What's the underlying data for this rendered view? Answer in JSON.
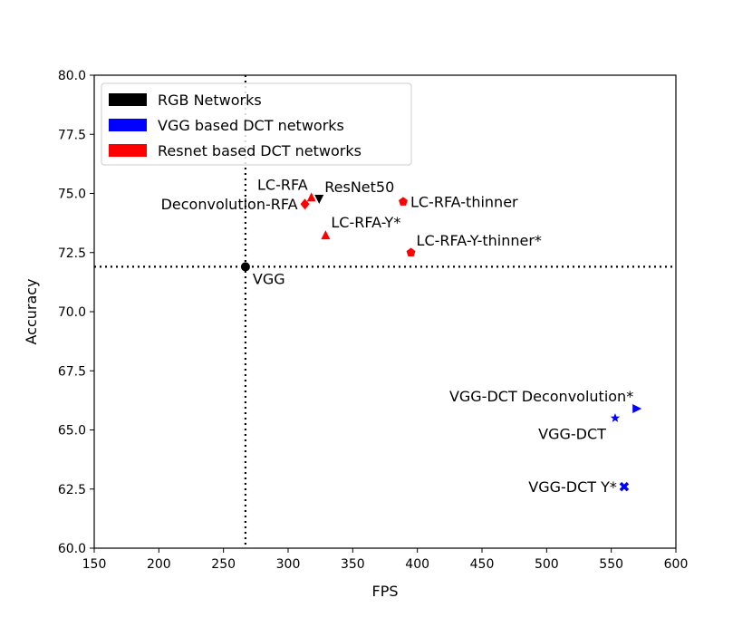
{
  "chart_data": {
    "type": "scatter",
    "title": "",
    "xlabel": "FPS",
    "ylabel": "Accuracy",
    "xlim": [
      150,
      600
    ],
    "ylim": [
      60,
      80
    ],
    "xticks": [
      "150",
      "200",
      "250",
      "300",
      "350",
      "400",
      "450",
      "500",
      "550",
      "600"
    ],
    "yticks": [
      "60.0",
      "62.5",
      "65.0",
      "67.5",
      "70.0",
      "72.5",
      "75.0",
      "77.5",
      "80.0"
    ],
    "grid": false,
    "legend_position": "top-left",
    "legend": [
      {
        "label": "RGB Networks",
        "color": "#000000"
      },
      {
        "label": "VGG based DCT networks",
        "color": "#0000ff"
      },
      {
        "label": "Resnet based DCT networks",
        "color": "#ff0000"
      }
    ],
    "reference_lines": [
      {
        "orientation": "vertical",
        "x": 267,
        "style": "dotted"
      },
      {
        "orientation": "horizontal",
        "y": 71.9,
        "style": "dotted"
      }
    ],
    "points": [
      {
        "label": "VGG",
        "x": 267,
        "y": 71.9,
        "group": "RGB Networks",
        "color": "#000000",
        "marker": "circle",
        "label_anchor": "below-right"
      },
      {
        "label": "ResNet50",
        "x": 324,
        "y": 74.75,
        "group": "RGB Networks",
        "color": "#000000",
        "marker": "triangle-down",
        "label_anchor": "above-right"
      },
      {
        "label": "LC-RFA",
        "x": 318,
        "y": 74.85,
        "group": "Resnet based DCT networks",
        "color": "#ff0000",
        "marker": "triangle-up",
        "label_anchor": "above-left"
      },
      {
        "label": "Deconvolution-RFA",
        "x": 313,
        "y": 74.55,
        "group": "Resnet based DCT networks",
        "color": "#ff0000",
        "marker": "diamond",
        "label_anchor": "left"
      },
      {
        "label": "LC-RFA-thinner",
        "x": 389,
        "y": 74.65,
        "group": "Resnet based DCT networks",
        "color": "#ff0000",
        "marker": "pentagon",
        "label_anchor": "right"
      },
      {
        "label": "LC-RFA-Y*",
        "x": 329,
        "y": 73.25,
        "group": "Resnet based DCT networks",
        "color": "#ff0000",
        "marker": "triangle-up",
        "label_anchor": "above-right"
      },
      {
        "label": "LC-RFA-Y-thinner*",
        "x": 395,
        "y": 72.5,
        "group": "Resnet based DCT networks",
        "color": "#ff0000",
        "marker": "pentagon",
        "label_anchor": "above-right"
      },
      {
        "label": "VGG-DCT Deconvolution*",
        "x": 570,
        "y": 65.9,
        "group": "VGG based DCT networks",
        "color": "#0000ff",
        "marker": "triangle-right",
        "label_anchor": "above-left"
      },
      {
        "label": "VGG-DCT",
        "x": 553,
        "y": 65.5,
        "group": "VGG based DCT networks",
        "color": "#0000ff",
        "marker": "star",
        "label_anchor": "below-left"
      },
      {
        "label": "VGG-DCT Y*",
        "x": 560,
        "y": 62.6,
        "group": "VGG based DCT networks",
        "color": "#0000ff",
        "marker": "x-filled",
        "label_anchor": "left"
      }
    ]
  }
}
